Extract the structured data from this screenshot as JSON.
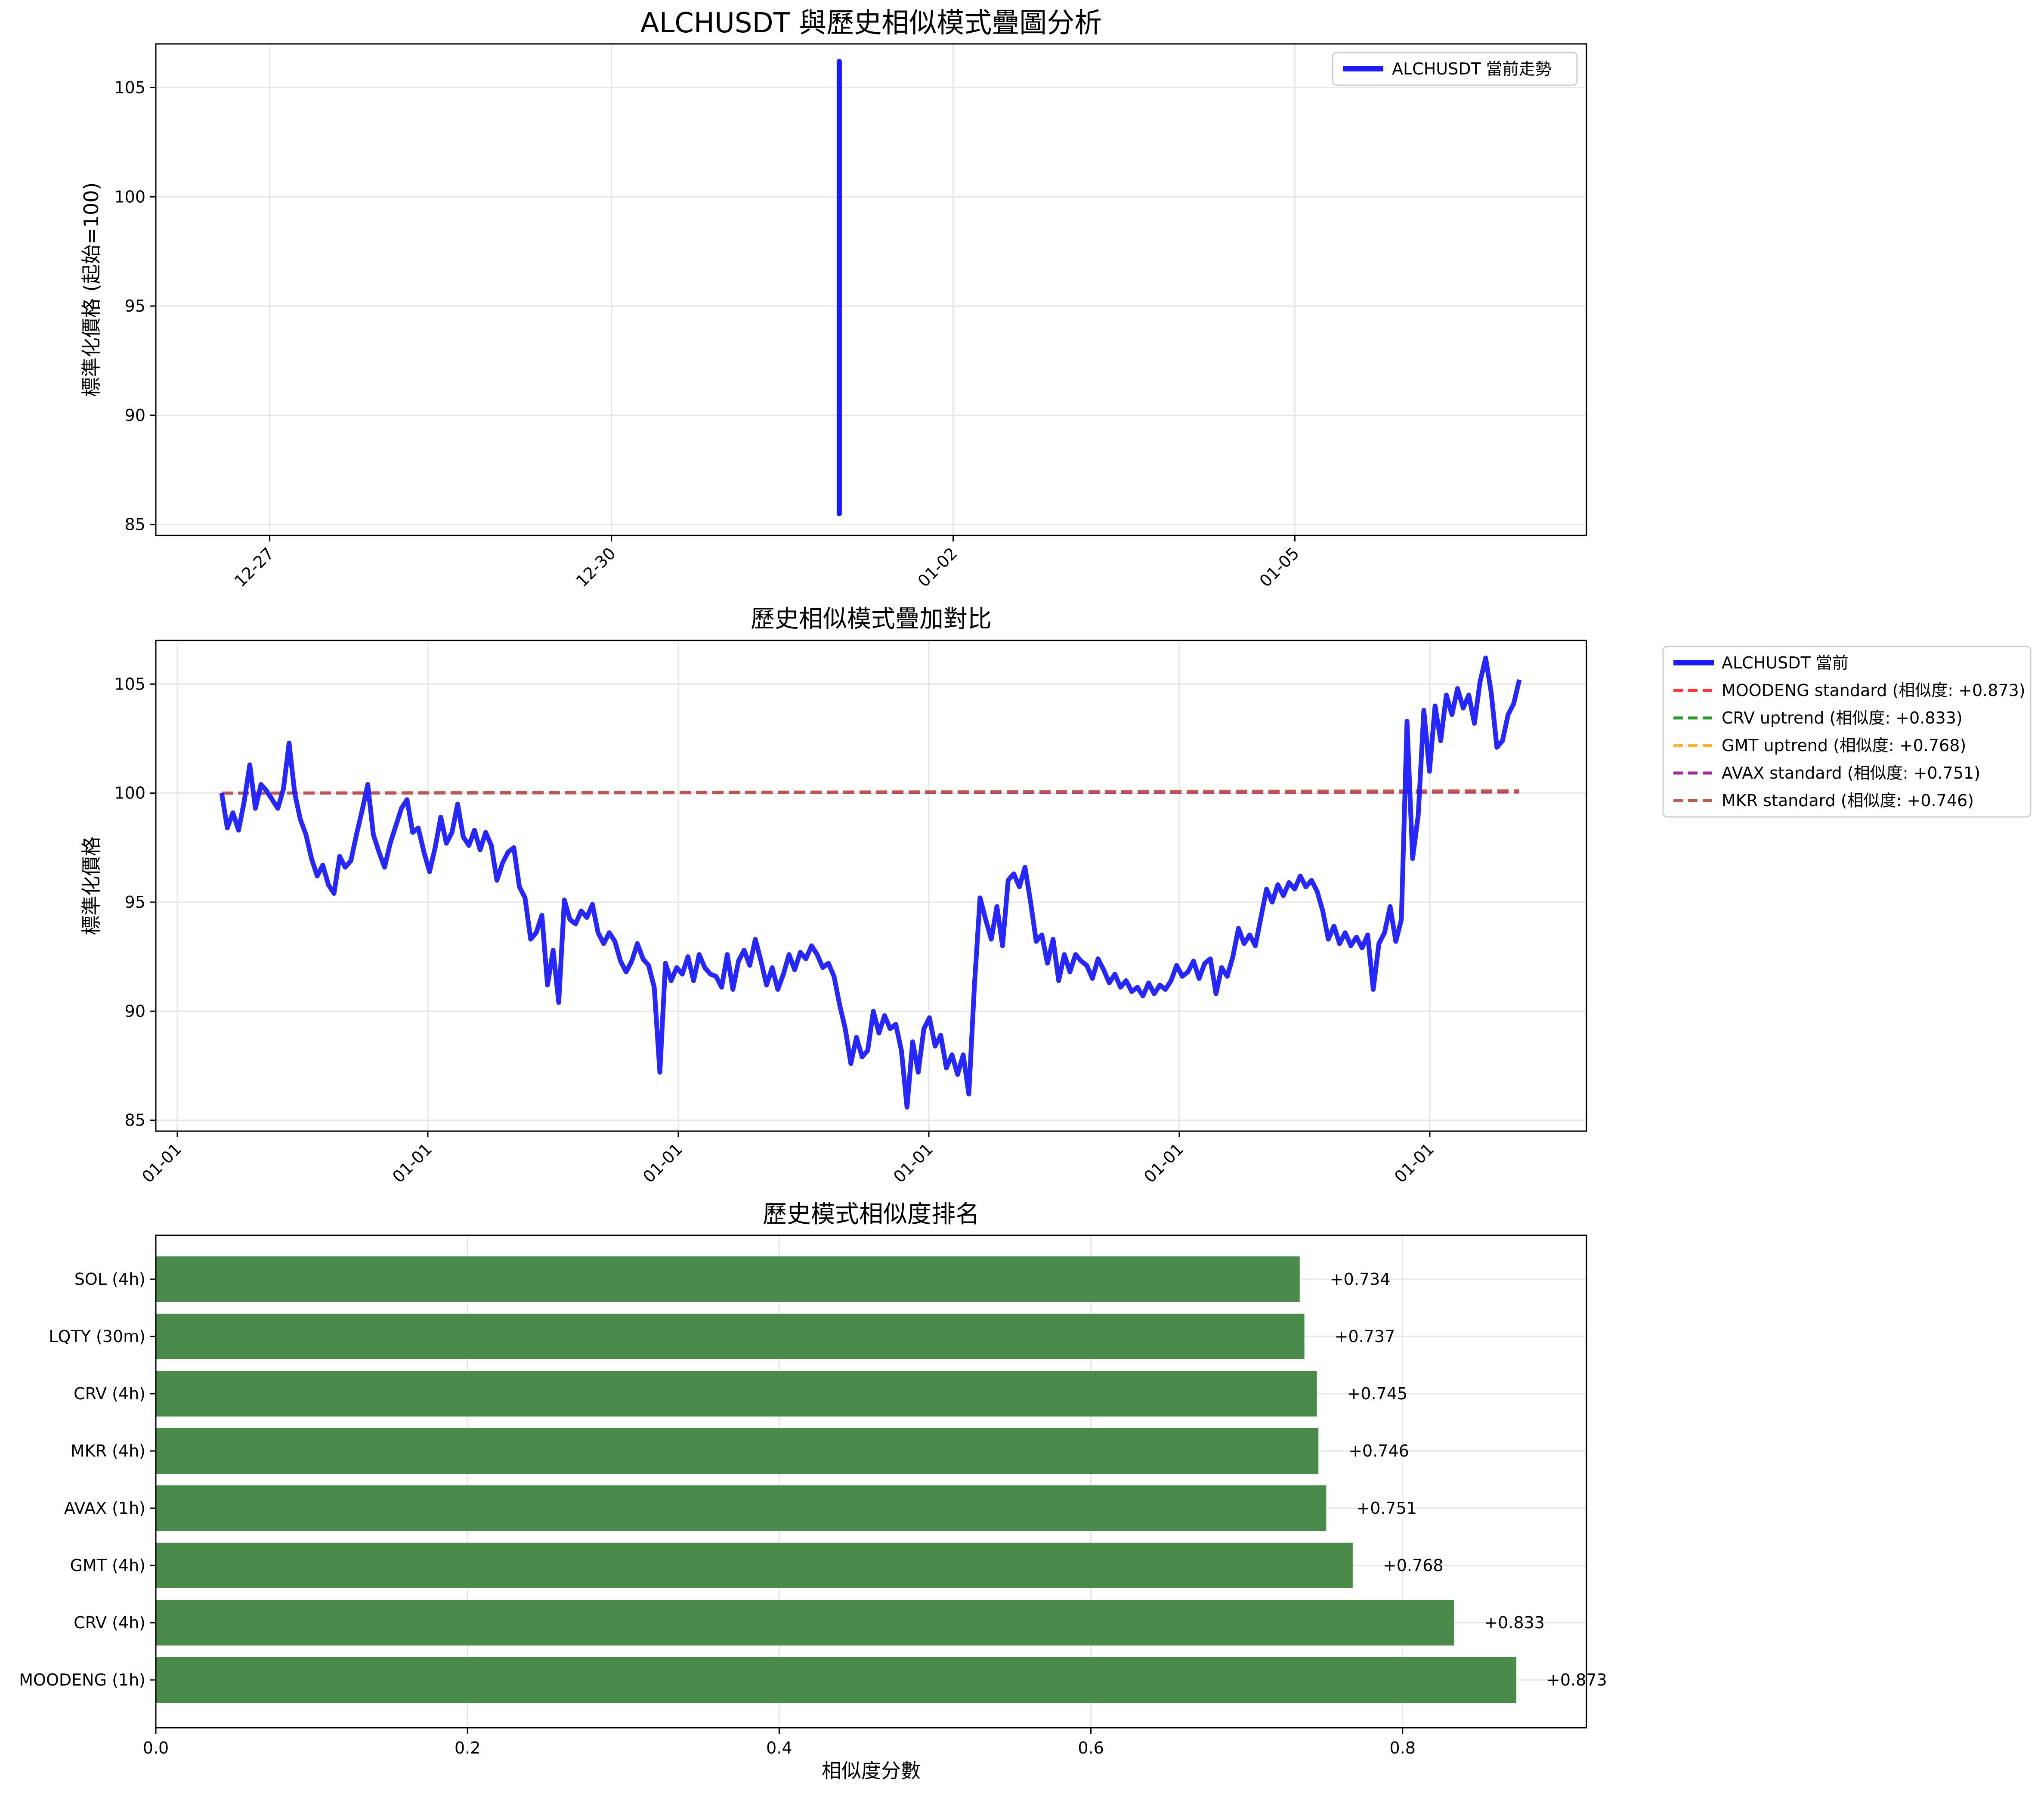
{
  "colors": {
    "current": "#1a1aff",
    "bar": "#4a8a4a",
    "grid": "#e6e6e6",
    "moodeng": "#ff3333",
    "crv": "#2e9a2e",
    "gmt": "#ffb233",
    "avax": "#a029a0",
    "mkr": "#bf5a4e"
  },
  "chart_data": [
    {
      "type": "line",
      "title": "ALCHUSDT 與歷史相似模式疊圖分析",
      "ylabel": "標準化價格 (起始=100)",
      "xlabel": "",
      "x_tick_labels": [
        "12-27",
        "12-30",
        "01-02",
        "01-05"
      ],
      "x_tick_days": [
        1,
        4,
        7,
        10
      ],
      "xlim_days": [
        0.0,
        12.56
      ],
      "y_ticks": [
        85,
        90,
        95,
        100,
        105
      ],
      "ylim": [
        84.5,
        107.0
      ],
      "grid": true,
      "legend_position": "upper right",
      "series": [
        {
          "name": "ALCHUSDT 當前走勢",
          "style": "solid",
          "x_days": [
            6.0,
            6.0
          ],
          "y": [
            85.5,
            106.2
          ]
        }
      ]
    },
    {
      "type": "line",
      "title": "歷史相似模式疊加對比",
      "ylabel": "標準化價格",
      "xlabel": "",
      "x_tick_labels": [
        "01-01",
        "01-01",
        "01-01",
        "01-01",
        "01-01",
        "01-01"
      ],
      "y_ticks": [
        85,
        90,
        95,
        100,
        105
      ],
      "ylim": [
        84.5,
        107.0
      ],
      "grid": true,
      "legend_position": "outside right",
      "current_series": {
        "name": "ALCHUSDT 當前",
        "anchors": [
          [
            0,
            100.0
          ],
          [
            2,
            98.4
          ],
          [
            4,
            99.1
          ],
          [
            6,
            98.3
          ],
          [
            8,
            99.6
          ],
          [
            10,
            101.3
          ],
          [
            12,
            99.3
          ],
          [
            14,
            100.4
          ],
          [
            16,
            100.1
          ],
          [
            18,
            99.7
          ],
          [
            20,
            99.3
          ],
          [
            22,
            100.2
          ],
          [
            24,
            102.3
          ],
          [
            26,
            100.0
          ],
          [
            28,
            98.8
          ],
          [
            30,
            98.1
          ],
          [
            32,
            97.0
          ],
          [
            34,
            96.2
          ],
          [
            36,
            96.7
          ],
          [
            38,
            95.8
          ],
          [
            40,
            95.4
          ],
          [
            42,
            97.1
          ],
          [
            44,
            96.6
          ],
          [
            46,
            96.9
          ],
          [
            48,
            98.1
          ],
          [
            50,
            99.2
          ],
          [
            52,
            100.4
          ],
          [
            54,
            98.1
          ],
          [
            56,
            97.3
          ],
          [
            58,
            96.6
          ],
          [
            60,
            97.7
          ],
          [
            62,
            98.5
          ],
          [
            64,
            99.3
          ],
          [
            66,
            99.7
          ],
          [
            68,
            98.2
          ],
          [
            70,
            98.4
          ],
          [
            72,
            97.3
          ],
          [
            74,
            96.4
          ],
          [
            76,
            97.5
          ],
          [
            78,
            98.9
          ],
          [
            80,
            97.7
          ],
          [
            82,
            98.2
          ],
          [
            84,
            99.5
          ],
          [
            86,
            98.0
          ],
          [
            88,
            97.6
          ],
          [
            90,
            98.3
          ],
          [
            92,
            97.4
          ],
          [
            94,
            98.2
          ],
          [
            96,
            97.6
          ],
          [
            98,
            96.0
          ],
          [
            100,
            96.8
          ],
          [
            102,
            97.3
          ],
          [
            104,
            97.5
          ],
          [
            106,
            95.7
          ],
          [
            108,
            95.2
          ],
          [
            110,
            93.3
          ],
          [
            112,
            93.6
          ],
          [
            114,
            94.4
          ],
          [
            116,
            91.2
          ],
          [
            118,
            92.8
          ],
          [
            120,
            90.4
          ],
          [
            122,
            95.1
          ],
          [
            124,
            94.2
          ],
          [
            126,
            94.0
          ],
          [
            128,
            94.6
          ],
          [
            130,
            94.3
          ],
          [
            132,
            94.9
          ],
          [
            134,
            93.6
          ],
          [
            136,
            93.1
          ],
          [
            138,
            93.6
          ],
          [
            140,
            93.2
          ],
          [
            142,
            92.3
          ],
          [
            144,
            91.8
          ],
          [
            146,
            92.3
          ],
          [
            148,
            93.1
          ],
          [
            150,
            92.4
          ],
          [
            152,
            92.1
          ],
          [
            154,
            91.1
          ],
          [
            156,
            87.2
          ],
          [
            158,
            92.2
          ],
          [
            160,
            91.4
          ],
          [
            162,
            92.0
          ],
          [
            164,
            91.7
          ],
          [
            166,
            92.5
          ],
          [
            168,
            91.4
          ],
          [
            170,
            92.6
          ],
          [
            172,
            92.0
          ],
          [
            174,
            91.7
          ],
          [
            176,
            91.6
          ],
          [
            178,
            91.1
          ],
          [
            180,
            92.6
          ],
          [
            182,
            91.0
          ],
          [
            184,
            92.3
          ],
          [
            186,
            92.8
          ],
          [
            188,
            92.1
          ],
          [
            190,
            93.3
          ],
          [
            192,
            92.3
          ],
          [
            194,
            91.2
          ],
          [
            196,
            92.0
          ],
          [
            198,
            91.0
          ],
          [
            200,
            91.7
          ],
          [
            202,
            92.6
          ],
          [
            204,
            91.9
          ],
          [
            206,
            92.7
          ],
          [
            208,
            92.4
          ],
          [
            210,
            93.0
          ],
          [
            212,
            92.6
          ],
          [
            214,
            92.0
          ],
          [
            216,
            92.2
          ],
          [
            218,
            91.6
          ],
          [
            220,
            90.3
          ],
          [
            222,
            89.2
          ],
          [
            224,
            87.6
          ],
          [
            226,
            88.8
          ],
          [
            228,
            87.9
          ],
          [
            230,
            88.2
          ],
          [
            232,
            90.0
          ],
          [
            234,
            89.0
          ],
          [
            236,
            89.8
          ],
          [
            238,
            89.2
          ],
          [
            240,
            89.4
          ],
          [
            242,
            88.2
          ],
          [
            244,
            85.6
          ],
          [
            246,
            88.6
          ],
          [
            248,
            87.2
          ],
          [
            250,
            89.2
          ],
          [
            252,
            89.7
          ],
          [
            254,
            88.4
          ],
          [
            256,
            88.9
          ],
          [
            258,
            87.4
          ],
          [
            260,
            88.0
          ],
          [
            262,
            87.1
          ],
          [
            264,
            88.0
          ],
          [
            266,
            86.2
          ],
          [
            268,
            91.2
          ],
          [
            270,
            95.2
          ],
          [
            272,
            94.2
          ],
          [
            274,
            93.3
          ],
          [
            276,
            94.8
          ],
          [
            278,
            93.0
          ],
          [
            280,
            96.0
          ],
          [
            282,
            96.3
          ],
          [
            284,
            95.7
          ],
          [
            286,
            96.6
          ],
          [
            288,
            95.0
          ],
          [
            290,
            93.2
          ],
          [
            292,
            93.5
          ],
          [
            294,
            92.2
          ],
          [
            296,
            93.3
          ],
          [
            298,
            91.4
          ],
          [
            300,
            92.6
          ],
          [
            302,
            91.8
          ],
          [
            304,
            92.6
          ],
          [
            306,
            92.3
          ],
          [
            308,
            92.1
          ],
          [
            310,
            91.5
          ],
          [
            312,
            92.4
          ],
          [
            314,
            91.9
          ],
          [
            316,
            91.3
          ],
          [
            318,
            91.7
          ],
          [
            320,
            91.1
          ],
          [
            322,
            91.4
          ],
          [
            324,
            90.9
          ],
          [
            326,
            91.1
          ],
          [
            328,
            90.7
          ],
          [
            330,
            91.3
          ],
          [
            332,
            90.8
          ],
          [
            334,
            91.2
          ],
          [
            336,
            91.0
          ],
          [
            338,
            91.4
          ],
          [
            340,
            92.1
          ],
          [
            342,
            91.6
          ],
          [
            344,
            91.8
          ],
          [
            346,
            92.3
          ],
          [
            348,
            91.5
          ],
          [
            350,
            92.2
          ],
          [
            352,
            92.4
          ],
          [
            354,
            90.8
          ],
          [
            356,
            92.0
          ],
          [
            358,
            91.6
          ],
          [
            360,
            92.5
          ],
          [
            362,
            93.8
          ],
          [
            364,
            93.1
          ],
          [
            366,
            93.5
          ],
          [
            368,
            93.0
          ],
          [
            370,
            94.3
          ],
          [
            372,
            95.6
          ],
          [
            374,
            95.0
          ],
          [
            376,
            95.8
          ],
          [
            378,
            95.3
          ],
          [
            380,
            95.9
          ],
          [
            382,
            95.6
          ],
          [
            384,
            96.2
          ],
          [
            386,
            95.7
          ],
          [
            388,
            96.0
          ],
          [
            390,
            95.5
          ],
          [
            392,
            94.6
          ],
          [
            394,
            93.3
          ],
          [
            396,
            93.9
          ],
          [
            398,
            93.1
          ],
          [
            400,
            93.6
          ],
          [
            402,
            93.0
          ],
          [
            404,
            93.4
          ],
          [
            406,
            92.9
          ],
          [
            408,
            93.5
          ],
          [
            410,
            91.0
          ],
          [
            412,
            93.1
          ],
          [
            414,
            93.6
          ],
          [
            416,
            94.8
          ],
          [
            418,
            93.2
          ],
          [
            420,
            94.2
          ],
          [
            422,
            103.3
          ],
          [
            424,
            97.0
          ],
          [
            426,
            99.0
          ],
          [
            428,
            103.8
          ],
          [
            430,
            101.0
          ],
          [
            432,
            104.0
          ],
          [
            434,
            102.4
          ],
          [
            436,
            104.5
          ],
          [
            438,
            103.6
          ],
          [
            440,
            104.8
          ],
          [
            442,
            103.9
          ],
          [
            444,
            104.5
          ],
          [
            446,
            103.2
          ],
          [
            448,
            105.1
          ],
          [
            450,
            106.2
          ],
          [
            452,
            104.6
          ],
          [
            454,
            102.1
          ],
          [
            456,
            102.4
          ],
          [
            458,
            103.6
          ],
          [
            460,
            104.1
          ],
          [
            462,
            105.2
          ]
        ]
      },
      "pattern_series": [
        {
          "name": "MOODENG standard (相似度: +0.873)",
          "color_key": "moodeng",
          "style": "dashed",
          "start": 100.0,
          "end": 100.05
        },
        {
          "name": "CRV uptrend (相似度: +0.833)",
          "color_key": "crv",
          "style": "dashed",
          "start": 100.0,
          "end": 100.08
        },
        {
          "name": "GMT uptrend (相似度: +0.768)",
          "color_key": "gmt",
          "style": "dashed",
          "start": 100.0,
          "end": 100.12
        },
        {
          "name": "AVAX standard (相似度: +0.751)",
          "color_key": "avax",
          "style": "dashed",
          "start": 100.0,
          "end": 100.06
        },
        {
          "name": "MKR standard (相似度: +0.746)",
          "color_key": "mkr",
          "style": "dashed",
          "start": 100.0,
          "end": 100.1
        }
      ]
    },
    {
      "type": "bar",
      "orientation": "horizontal",
      "title": "歷史模式相似度排名",
      "xlabel": "相似度分數",
      "ylabel": "",
      "xlim": [
        0.0,
        0.918
      ],
      "x_ticks": [
        0.0,
        0.2,
        0.4,
        0.6,
        0.8
      ],
      "x_tick_labels": [
        "0.0",
        "0.2",
        "0.4",
        "0.6",
        "0.8"
      ],
      "grid": true,
      "categories": [
        "SOL (4h)",
        "LQTY (30m)",
        "CRV (4h)",
        "MKR (4h)",
        "AVAX (1h)",
        "GMT (4h)",
        "CRV (4h)",
        "MOODENG (1h)"
      ],
      "values": [
        0.734,
        0.737,
        0.745,
        0.746,
        0.751,
        0.768,
        0.833,
        0.873
      ],
      "value_labels": [
        "+0.734",
        "+0.737",
        "+0.745",
        "+0.746",
        "+0.751",
        "+0.768",
        "+0.833",
        "+0.873"
      ]
    }
  ]
}
